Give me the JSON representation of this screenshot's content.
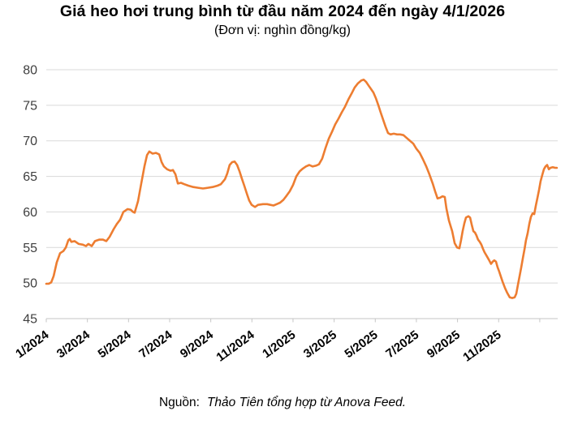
{
  "header": {
    "title": "Giá heo hơi trung bình từ đầu năm 2024 đến ngày 4/1/2026",
    "subtitle": "(Đơn vị: nghìn đồng/kg)"
  },
  "footer": {
    "source_label": "Nguồn:",
    "source_text": "Thảo Tiên tổng hợp từ Anova Feed."
  },
  "chart_data": {
    "type": "line",
    "title": "Giá heo hơi trung bình từ đầu năm 2024 đến ngày 4/1/2026",
    "unit_label": "(Đơn vị: nghìn đồng/kg)",
    "series_name": "Giá heo hơi trung bình (nghìn đồng/kg)",
    "line_color": "#ED7D31",
    "grid_color": "#D9D9D9",
    "axis_color": "#C6C6C6",
    "ylabel_color": "#3F3F3F",
    "xlabel_color": "#000000",
    "ylim": [
      45,
      80
    ],
    "yticks": [
      45,
      50,
      55,
      60,
      65,
      70,
      75,
      80
    ],
    "grid": "horizontal-only",
    "legend": "none",
    "x_axis_note": "x is months since 1/2024; data runs to 4/1/2026",
    "xticks": [
      {
        "m": 0,
        "label": "1/2024"
      },
      {
        "m": 2,
        "label": "3/2024"
      },
      {
        "m": 4,
        "label": "5/2024"
      },
      {
        "m": 6,
        "label": "7/2024"
      },
      {
        "m": 8,
        "label": "9/2024"
      },
      {
        "m": 10,
        "label": "11/2024"
      },
      {
        "m": 12,
        "label": "1/2025"
      },
      {
        "m": 14,
        "label": "3/2025"
      },
      {
        "m": 16,
        "label": "5/2025"
      },
      {
        "m": 18,
        "label": "7/2025"
      },
      {
        "m": 20,
        "label": "9/2025"
      },
      {
        "m": 22,
        "label": "11/2025"
      },
      {
        "m": 24,
        "label": ""
      }
    ],
    "points": [
      [
        0,
        49.9
      ],
      [
        0.12,
        49.9
      ],
      [
        0.24,
        50.1
      ],
      [
        0.36,
        51
      ],
      [
        0.51,
        52.9
      ],
      [
        0.67,
        54.2
      ],
      [
        0.83,
        54.5
      ],
      [
        0.95,
        55
      ],
      [
        1.07,
        56
      ],
      [
        1.14,
        56.2
      ],
      [
        1.22,
        55.8
      ],
      [
        1.38,
        55.9
      ],
      [
        1.58,
        55.5
      ],
      [
        1.78,
        55.4
      ],
      [
        1.93,
        55.2
      ],
      [
        2.05,
        55.5
      ],
      [
        2.21,
        55.2
      ],
      [
        2.37,
        55.9
      ],
      [
        2.57,
        56.1
      ],
      [
        2.76,
        56.1
      ],
      [
        2.92,
        55.9
      ],
      [
        3.08,
        56.5
      ],
      [
        3.28,
        57.6
      ],
      [
        3.43,
        58.3
      ],
      [
        3.59,
        58.9
      ],
      [
        3.75,
        60
      ],
      [
        3.95,
        60.4
      ],
      [
        4.11,
        60.3
      ],
      [
        4.22,
        60
      ],
      [
        4.3,
        59.9
      ],
      [
        4.46,
        61.5
      ],
      [
        4.62,
        64
      ],
      [
        4.78,
        66.5
      ],
      [
        4.9,
        68
      ],
      [
        5.01,
        68.5
      ],
      [
        5.17,
        68.2
      ],
      [
        5.33,
        68.3
      ],
      [
        5.49,
        68.1
      ],
      [
        5.61,
        67
      ],
      [
        5.72,
        66.4
      ],
      [
        5.88,
        66
      ],
      [
        6.04,
        65.8
      ],
      [
        6.16,
        65.9
      ],
      [
        6.28,
        65.3
      ],
      [
        6.4,
        64
      ],
      [
        6.55,
        64.1
      ],
      [
        6.71,
        63.9
      ],
      [
        6.91,
        63.7
      ],
      [
        7.15,
        63.5
      ],
      [
        7.38,
        63.4
      ],
      [
        7.62,
        63.3
      ],
      [
        7.86,
        63.4
      ],
      [
        8.09,
        63.5
      ],
      [
        8.33,
        63.7
      ],
      [
        8.49,
        63.9
      ],
      [
        8.69,
        64.6
      ],
      [
        8.8,
        65.4
      ],
      [
        8.92,
        66.6
      ],
      [
        9.04,
        67
      ],
      [
        9.16,
        67.1
      ],
      [
        9.28,
        66.6
      ],
      [
        9.4,
        65.7
      ],
      [
        9.51,
        64.7
      ],
      [
        9.63,
        63.7
      ],
      [
        9.75,
        62.6
      ],
      [
        9.87,
        61.6
      ],
      [
        9.99,
        61
      ],
      [
        10.15,
        60.7
      ],
      [
        10.3,
        61
      ],
      [
        10.54,
        61.1
      ],
      [
        10.74,
        61.1
      ],
      [
        10.9,
        61
      ],
      [
        11.05,
        60.9
      ],
      [
        11.21,
        61.1
      ],
      [
        11.37,
        61.3
      ],
      [
        11.53,
        61.7
      ],
      [
        11.69,
        62.3
      ],
      [
        11.84,
        62.9
      ],
      [
        12,
        63.8
      ],
      [
        12.16,
        65
      ],
      [
        12.32,
        65.7
      ],
      [
        12.48,
        66.1
      ],
      [
        12.63,
        66.4
      ],
      [
        12.79,
        66.6
      ],
      [
        12.95,
        66.4
      ],
      [
        13.11,
        66.5
      ],
      [
        13.26,
        66.7
      ],
      [
        13.42,
        67.5
      ],
      [
        13.58,
        69
      ],
      [
        13.74,
        70.3
      ],
      [
        13.9,
        71.3
      ],
      [
        14.05,
        72.3
      ],
      [
        14.21,
        73.1
      ],
      [
        14.37,
        74
      ],
      [
        14.53,
        74.8
      ],
      [
        14.69,
        75.8
      ],
      [
        14.84,
        76.6
      ],
      [
        15,
        77.5
      ],
      [
        15.16,
        78.1
      ],
      [
        15.32,
        78.5
      ],
      [
        15.44,
        78.6
      ],
      [
        15.55,
        78.3
      ],
      [
        15.67,
        77.8
      ],
      [
        15.79,
        77.3
      ],
      [
        15.91,
        76.8
      ],
      [
        16.03,
        76
      ],
      [
        16.15,
        75
      ],
      [
        16.26,
        74
      ],
      [
        16.38,
        73
      ],
      [
        16.5,
        72
      ],
      [
        16.62,
        71.1
      ],
      [
        16.74,
        70.9
      ],
      [
        16.9,
        71
      ],
      [
        17.06,
        70.9
      ],
      [
        17.21,
        70.9
      ],
      [
        17.37,
        70.8
      ],
      [
        17.53,
        70.4
      ],
      [
        17.69,
        70
      ],
      [
        17.85,
        69.6
      ],
      [
        18,
        68.9
      ],
      [
        18.16,
        68.3
      ],
      [
        18.32,
        67.4
      ],
      [
        18.48,
        66.4
      ],
      [
        18.63,
        65.3
      ],
      [
        18.79,
        64
      ],
      [
        18.91,
        62.9
      ],
      [
        19.03,
        61.9
      ],
      [
        19.15,
        62
      ],
      [
        19.27,
        62.2
      ],
      [
        19.38,
        62.1
      ],
      [
        19.46,
        60.5
      ],
      [
        19.58,
        58.8
      ],
      [
        19.74,
        57.3
      ],
      [
        19.86,
        55.6
      ],
      [
        19.98,
        55
      ],
      [
        20.09,
        54.9
      ],
      [
        20.17,
        56
      ],
      [
        20.25,
        57.3
      ],
      [
        20.33,
        58.4
      ],
      [
        20.41,
        59.2
      ],
      [
        20.53,
        59.4
      ],
      [
        20.61,
        59.2
      ],
      [
        20.69,
        58.2
      ],
      [
        20.77,
        57.3
      ],
      [
        20.85,
        57.1
      ],
      [
        20.92,
        56.7
      ],
      [
        21,
        56.1
      ],
      [
        21.08,
        55.8
      ],
      [
        21.16,
        55.4
      ],
      [
        21.24,
        54.8
      ],
      [
        21.32,
        54.3
      ],
      [
        21.44,
        53.7
      ],
      [
        21.52,
        53.3
      ],
      [
        21.63,
        52.7
      ],
      [
        21.71,
        53
      ],
      [
        21.79,
        53.2
      ],
      [
        21.87,
        53
      ],
      [
        21.95,
        52.2
      ],
      [
        22.03,
        51.6
      ],
      [
        22.11,
        50.9
      ],
      [
        22.19,
        50.2
      ],
      [
        22.31,
        49.3
      ],
      [
        22.42,
        48.6
      ],
      [
        22.54,
        48
      ],
      [
        22.66,
        47.9
      ],
      [
        22.78,
        48
      ],
      [
        22.86,
        48.5
      ],
      [
        22.94,
        49.8
      ],
      [
        23.02,
        51
      ],
      [
        23.1,
        52.2
      ],
      [
        23.18,
        53.5
      ],
      [
        23.26,
        54.8
      ],
      [
        23.33,
        56
      ],
      [
        23.41,
        57
      ],
      [
        23.49,
        58.3
      ],
      [
        23.57,
        59.3
      ],
      [
        23.65,
        59.8
      ],
      [
        23.73,
        59.7
      ],
      [
        23.81,
        60.9
      ],
      [
        23.89,
        62
      ],
      [
        23.97,
        63.2
      ],
      [
        24.04,
        64.3
      ],
      [
        24.12,
        65.2
      ],
      [
        24.2,
        66
      ],
      [
        24.28,
        66.4
      ],
      [
        24.36,
        66.6
      ],
      [
        24.44,
        66
      ],
      [
        24.52,
        66.2
      ],
      [
        24.63,
        66.3
      ],
      [
        24.75,
        66.2
      ],
      [
        24.83,
        66.2
      ]
    ]
  }
}
